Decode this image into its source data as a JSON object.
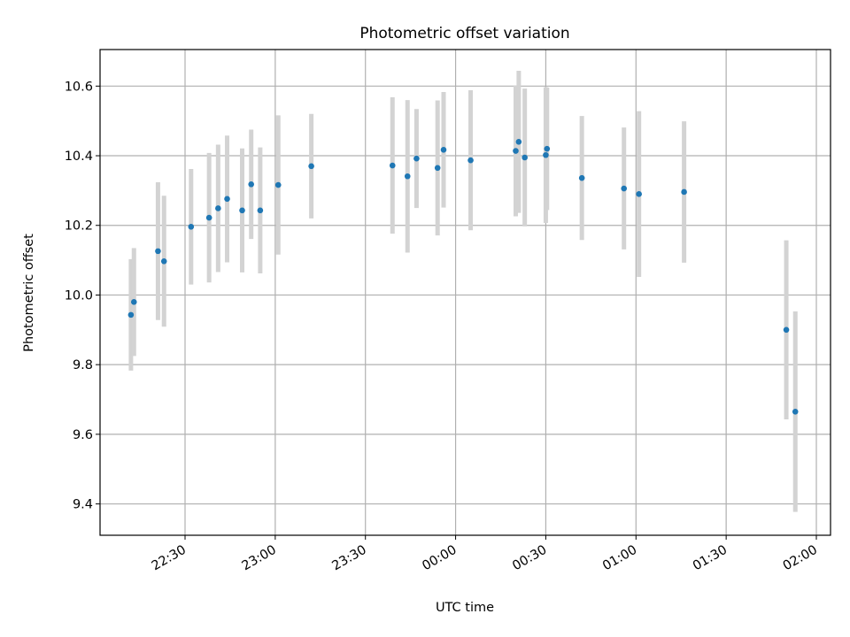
{
  "chart_data": {
    "type": "scatter",
    "title": "Photometric offset variation",
    "xlabel": "UTC time",
    "ylabel": "Photometric offset",
    "x_tick_labels": [
      "22:30",
      "23:00",
      "23:30",
      "00:00",
      "00:30",
      "01:00",
      "01:30",
      "02:00"
    ],
    "y_tick_labels": [
      "9.4",
      "9.6",
      "9.8",
      "10.0",
      "10.2",
      "10.4",
      "10.6"
    ],
    "y_ticks": [
      9.4,
      9.6,
      9.8,
      10.0,
      10.2,
      10.4,
      10.6
    ],
    "ylim": [
      9.31,
      10.705
    ],
    "grid": true,
    "marker_color": "#1f77b4",
    "errorbar_color": "#d3d3d3",
    "points": [
      {
        "x": "22:12",
        "y": 9.943,
        "err": 0.16
      },
      {
        "x": "22:13",
        "y": 9.98,
        "err": 0.155
      },
      {
        "x": "22:21",
        "y": 10.126,
        "err": 0.198
      },
      {
        "x": "22:23",
        "y": 10.097,
        "err": 0.188
      },
      {
        "x": "22:32",
        "y": 10.196,
        "err": 0.166
      },
      {
        "x": "22:38",
        "y": 10.222,
        "err": 0.186
      },
      {
        "x": "22:41",
        "y": 10.249,
        "err": 0.183
      },
      {
        "x": "22:44",
        "y": 10.276,
        "err": 0.182
      },
      {
        "x": "22:49",
        "y": 10.243,
        "err": 0.178
      },
      {
        "x": "22:52",
        "y": 10.318,
        "err": 0.157
      },
      {
        "x": "22:55",
        "y": 10.243,
        "err": 0.181
      },
      {
        "x": "23:01",
        "y": 10.316,
        "err": 0.2
      },
      {
        "x": "23:12",
        "y": 10.37,
        "err": 0.15
      },
      {
        "x": "23:39",
        "y": 10.372,
        "err": 0.196
      },
      {
        "x": "23:44",
        "y": 10.341,
        "err": 0.219
      },
      {
        "x": "23:47",
        "y": 10.392,
        "err": 0.142
      },
      {
        "x": "23:54",
        "y": 10.365,
        "err": 0.194
      },
      {
        "x": "23:56",
        "y": 10.417,
        "err": 0.166
      },
      {
        "x": "00:05",
        "y": 10.387,
        "err": 0.201
      },
      {
        "x": "00:20",
        "y": 10.414,
        "err": 0.188
      },
      {
        "x": "00:21",
        "y": 10.44,
        "err": 0.204
      },
      {
        "x": "00:23",
        "y": 10.395,
        "err": 0.198
      },
      {
        "x": "00:30",
        "y": 10.402,
        "err": 0.195
      },
      {
        "x": "00:30",
        "y": 10.42,
        "err": 0.176
      },
      {
        "x": "00:42",
        "y": 10.336,
        "err": 0.178
      },
      {
        "x": "00:56",
        "y": 10.306,
        "err": 0.175
      },
      {
        "x": "01:01",
        "y": 10.29,
        "err": 0.238
      },
      {
        "x": "01:16",
        "y": 10.296,
        "err": 0.203
      },
      {
        "x": "01:50",
        "y": 9.9,
        "err": 0.257
      },
      {
        "x": "01:53",
        "y": 9.665,
        "err": 0.288
      }
    ]
  }
}
